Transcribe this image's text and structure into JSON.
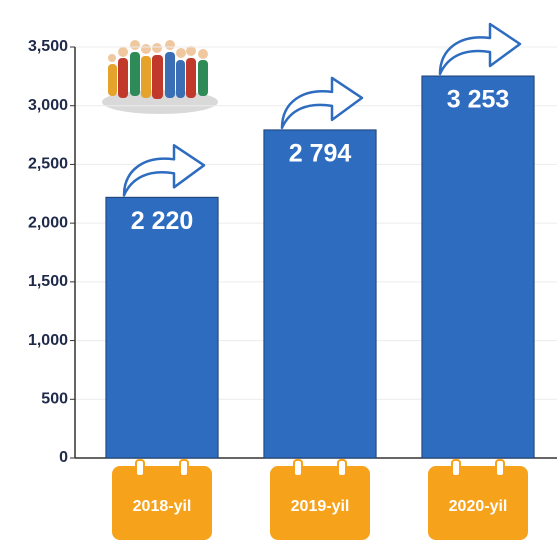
{
  "chart_data": {
    "type": "bar",
    "categories": [
      "2018-yil",
      "2019-yil",
      "2020-yil"
    ],
    "values": [
      2220,
      2794,
      3253
    ],
    "value_labels": [
      "2 220",
      "2 794",
      "3 253"
    ],
    "color": "#2e6cc0",
    "ylim": [
      0,
      3500
    ],
    "yticks": [
      0,
      500,
      {
        "value": 1000,
        "label": "1,000"
      },
      {
        "value": 1500,
        "label": "1,500"
      },
      {
        "value": 2000,
        "label": "2,000"
      },
      {
        "value": 2500,
        "label": "2,500"
      },
      {
        "value": 3000,
        "label": "3,000"
      },
      {
        "value": 3500,
        "label": "3,500"
      }
    ],
    "grid": true
  }
}
